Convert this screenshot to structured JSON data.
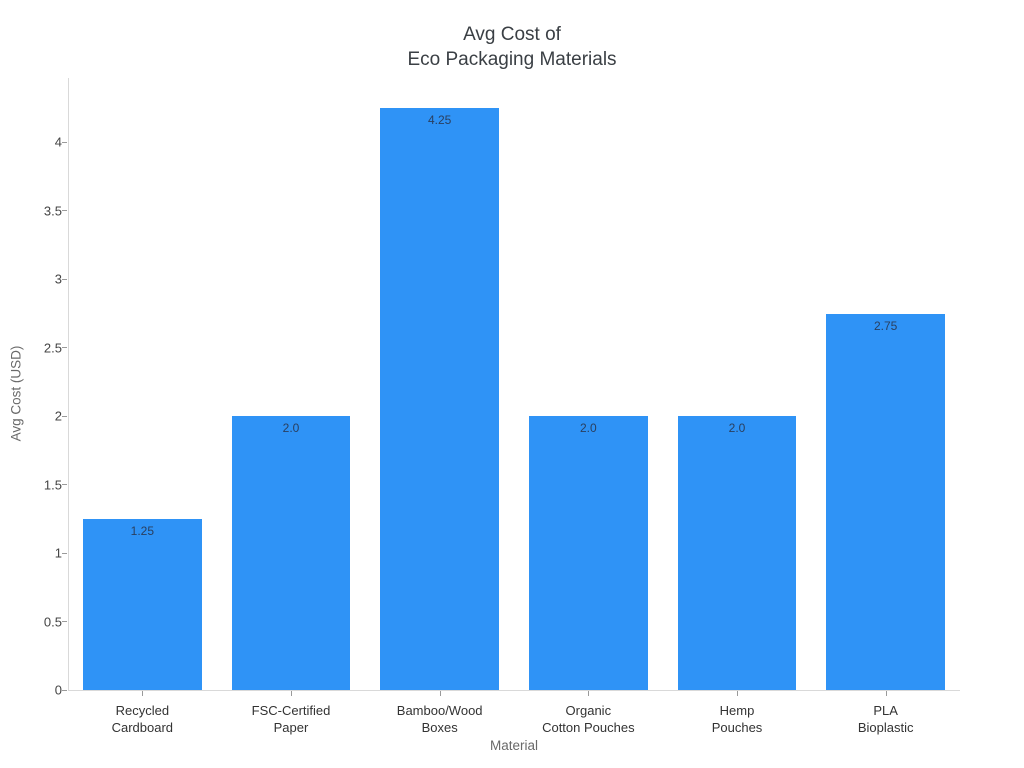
{
  "title": {
    "line1": "Avg Cost of",
    "line2": "Eco Packaging Materials"
  },
  "chart_data": {
    "type": "bar",
    "title": "Avg Cost of Eco Packaging Materials",
    "categories": [
      "Recycled Cardboard",
      "FSC-Certified Paper",
      "Bamboo/Wood Boxes",
      "Organic Cotton Pouches",
      "Hemp Pouches",
      "PLA Bioplastic"
    ],
    "category_lines": [
      [
        "Recycled",
        "Cardboard"
      ],
      [
        "FSC-Certified",
        "Paper"
      ],
      [
        "Bamboo/Wood",
        "Boxes"
      ],
      [
        "Organic",
        "Cotton Pouches"
      ],
      [
        "Hemp",
        "Pouches"
      ],
      [
        "PLA",
        "Bioplastic"
      ]
    ],
    "values": [
      1.25,
      2.0,
      4.25,
      2.0,
      2.0,
      2.75
    ],
    "value_labels": [
      "1.25",
      "2.0",
      "4.25",
      "2.0",
      "2.0",
      "2.75"
    ],
    "xlabel": "Material",
    "ylabel": "Avg Cost (USD)",
    "ylim": [
      0,
      4.47
    ],
    "yticks": [
      0,
      0.5,
      1,
      1.5,
      2,
      2.5,
      3,
      3.5,
      4
    ],
    "ytick_labels": [
      "0",
      "0.5",
      "1",
      "1.5",
      "2",
      "2.5",
      "3",
      "3.5",
      "4"
    ],
    "grid": false,
    "legend": "none",
    "colors": {
      "bar": "#2f93f6",
      "bar_value_label": "#2a3f5f",
      "axis_spine": "#d9d9d9",
      "tick_mark": "#9a9a9a",
      "tick_label": "#444444",
      "axis_title": "#696969",
      "title": "#3a3f44",
      "background": "#ffffff"
    }
  }
}
